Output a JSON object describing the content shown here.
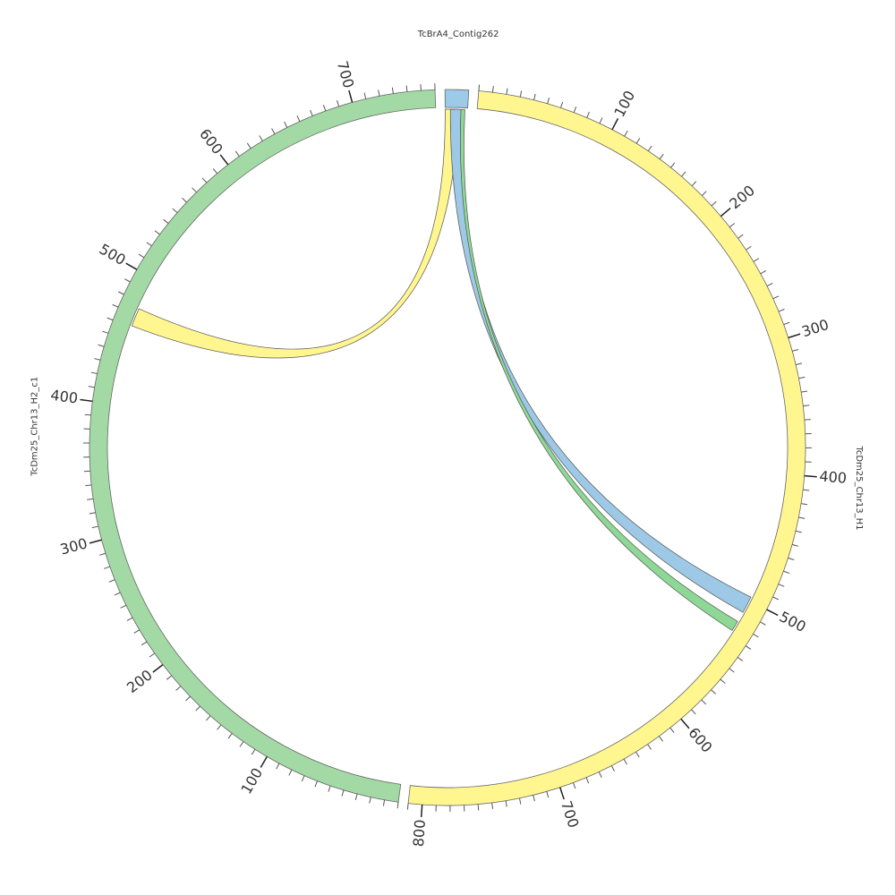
{
  "chart_data": {
    "type": "circos",
    "minor_tick_step": 10,
    "segments": [
      {
        "name": "TcBrA4_Contig262",
        "length": 17,
        "color": "#9ccae8",
        "ticks": []
      },
      {
        "name": "TcDm25_Chr13_H1",
        "length": 810,
        "color": "#fff68f",
        "ticks": [
          100,
          200,
          300,
          400,
          500,
          600,
          700,
          800
        ]
      },
      {
        "name": "TcDm25_Chr13_H2_c1",
        "length": 760,
        "color": "#a3d9a5",
        "ticks": [
          100,
          200,
          300,
          400,
          500,
          600,
          700
        ]
      }
    ],
    "links": [
      {
        "source": "TcBrA4_Contig262",
        "source_range": [
          0,
          10
        ],
        "target": "TcDm25_Chr13_H2_c1",
        "target_range": [
          461,
          475
        ],
        "color": "#fff68f"
      },
      {
        "source": "TcBrA4_Contig262",
        "source_range": [
          4,
          12
        ],
        "target": "TcDm25_Chr13_H1",
        "target_range": [
          497,
          510
        ],
        "color": "#9dc8e6"
      },
      {
        "source": "TcBrA4_Contig262",
        "source_range": [
          12,
          15
        ],
        "target": "TcDm25_Chr13_H1",
        "target_range": [
          518,
          526
        ],
        "color": "#8ed896"
      }
    ]
  }
}
